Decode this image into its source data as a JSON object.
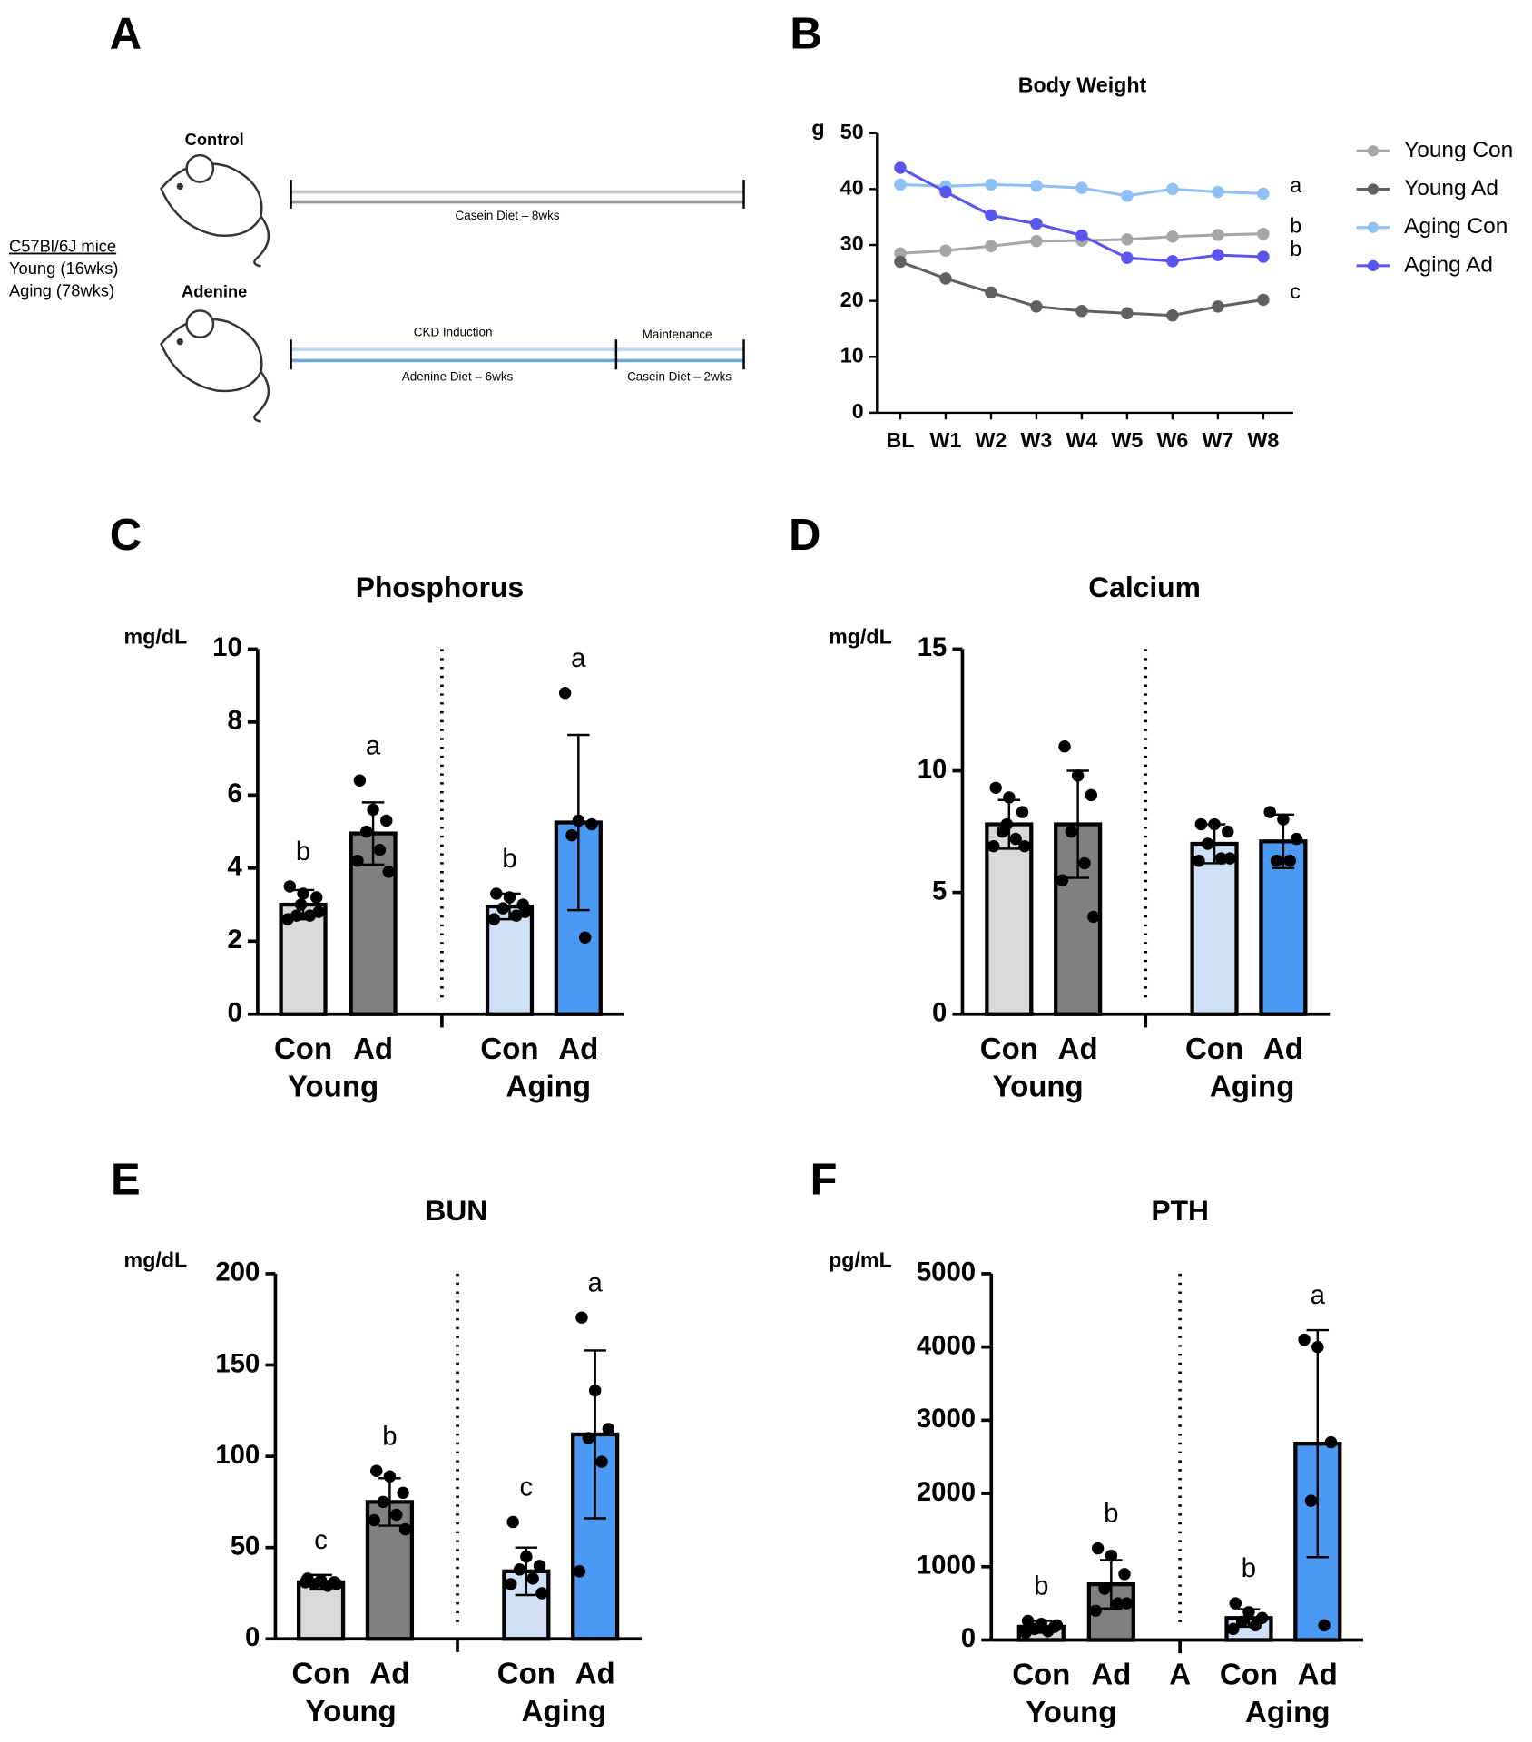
{
  "schematic": {
    "panel": "A",
    "cohort": "C57Bl/6J mice",
    "young": "Young (16wks)",
    "aging": "Aging (78wks)",
    "control": {
      "label": "Control",
      "diet": "Casein Diet – 8wks"
    },
    "adenine": {
      "label": "Adenine",
      "phase1": "CKD Induction",
      "phase2": "Maintenance",
      "diet1": "Adenine Diet – 6wks",
      "diet2": "Casein Diet – 2wks"
    }
  },
  "chart_data": [
    {
      "type": "line",
      "panel": "B",
      "title": "Body Weight",
      "y_label": "g",
      "categories": [
        "BL",
        "W1",
        "W2",
        "W3",
        "W4",
        "W5",
        "W6",
        "W7",
        "W8"
      ],
      "ylim": [
        0,
        50
      ],
      "yticks": [
        0,
        10,
        20,
        30,
        40,
        50
      ],
      "series": [
        {
          "name": "Young Con",
          "color": "#a6a6a6",
          "annotation": "b",
          "values": [
            28.5,
            29,
            29.8,
            30.7,
            30.8,
            31,
            31.5,
            31.8,
            32
          ]
        },
        {
          "name": "Young Ad",
          "color": "#606060",
          "annotation": "c",
          "values": [
            27,
            24,
            21.5,
            19,
            18.2,
            17.8,
            17.4,
            19,
            20.2
          ]
        },
        {
          "name": "Aging Con",
          "color": "#8fc0f5",
          "annotation": "a",
          "values": [
            40.8,
            40.5,
            40.8,
            40.6,
            40.2,
            38.8,
            40,
            39.5,
            39.2
          ]
        },
        {
          "name": "Aging Ad",
          "color": "#5a55ee",
          "annotation": "b",
          "values": [
            43.8,
            39.5,
            35.3,
            33.8,
            31.7,
            27.7,
            27.1,
            28.2,
            27.9
          ]
        }
      ]
    },
    {
      "type": "bar",
      "panel": "C",
      "title": "Phosphorus",
      "y_label": "mg/dL",
      "categories": [
        "Con",
        "Ad",
        "Con",
        "Ad"
      ],
      "groups": [
        "Young",
        "Aging"
      ],
      "colors": [
        "#d9d9d9",
        "#808080",
        "#cfe0f7",
        "#4a9af5"
      ],
      "ylim": [
        0,
        10
      ],
      "yticks": [
        0,
        2,
        4,
        6,
        8,
        10
      ],
      "values": [
        3.0,
        4.95,
        2.95,
        5.25
      ],
      "errors": [
        0.4,
        0.85,
        0.35,
        2.4
      ],
      "letters": [
        "b",
        "a",
        "b",
        "a"
      ],
      "points": [
        [
          3.5,
          3.3,
          3.2,
          2.7,
          2.7,
          2.6,
          2.8,
          3.0
        ],
        [
          6.4,
          5.6,
          5.3,
          5.0,
          4.5,
          4.2,
          3.9
        ],
        [
          3.3,
          3.2,
          3.0,
          2.9,
          2.7,
          2.6,
          2.8
        ],
        [
          8.8,
          5.3,
          5.2,
          4.9,
          2.1
        ]
      ]
    },
    {
      "type": "bar",
      "panel": "D",
      "title": "Calcium",
      "y_label": "mg/dL",
      "categories": [
        "Con",
        "Ad",
        "Con",
        "Ad"
      ],
      "groups": [
        "Young",
        "Aging"
      ],
      "colors": [
        "#d9d9d9",
        "#808080",
        "#cfe0f7",
        "#4a9af5"
      ],
      "ylim": [
        0,
        15
      ],
      "yticks": [
        0,
        5,
        10,
        15
      ],
      "values": [
        7.8,
        7.8,
        7.0,
        7.1
      ],
      "errors": [
        1.0,
        2.2,
        0.8,
        1.1
      ],
      "points": [
        [
          9.3,
          8.9,
          8.3,
          7.5,
          7.2,
          6.9,
          6.9,
          7.8
        ],
        [
          11,
          9.8,
          9.0,
          7.5,
          6.2,
          5.5,
          4.0
        ],
        [
          7.8,
          7.8,
          7.5,
          7.0,
          6.4,
          6.3,
          6.4
        ],
        [
          8.3,
          8.0,
          7.2,
          6.3,
          6.3
        ]
      ]
    },
    {
      "type": "bar",
      "panel": "E",
      "title": "BUN",
      "y_label": "mg/dL",
      "categories": [
        "Con",
        "Ad",
        "Con",
        "Ad"
      ],
      "groups": [
        "Young",
        "Aging"
      ],
      "colors": [
        "#d9d9d9",
        "#808080",
        "#cfe0f7",
        "#4a9af5"
      ],
      "ylim": [
        0,
        200
      ],
      "yticks": [
        0,
        50,
        100,
        150,
        200
      ],
      "values": [
        31,
        75,
        37,
        112
      ],
      "errors": [
        4,
        13,
        13,
        46
      ],
      "letters": [
        "c",
        "b",
        "c",
        "a"
      ],
      "points": [
        [
          33,
          32,
          31,
          30,
          29,
          31,
          30
        ],
        [
          92,
          89,
          80,
          75,
          68,
          65,
          60
        ],
        [
          64,
          45,
          40,
          38,
          33,
          30,
          25
        ],
        [
          176,
          136,
          115,
          110,
          97,
          37
        ]
      ]
    },
    {
      "type": "bar",
      "panel": "F",
      "title": "PTH",
      "y_label": "pg/mL",
      "divider_label": "A",
      "categories": [
        "Con",
        "Ad",
        "Con",
        "Ad"
      ],
      "groups": [
        "Young",
        "Aging"
      ],
      "colors": [
        "#d9d9d9",
        "#808080",
        "#cfe0f7",
        "#4a9af5"
      ],
      "ylim": [
        0,
        5000
      ],
      "yticks": [
        0,
        1000,
        2000,
        3000,
        4000,
        5000
      ],
      "values": [
        180,
        760,
        300,
        2680
      ],
      "errors": [
        80,
        330,
        120,
        1550
      ],
      "letters": [
        "b",
        "b",
        "b",
        "a"
      ],
      "points": [
        [
          260,
          220,
          180,
          150,
          120,
          100,
          200
        ],
        [
          1250,
          1150,
          900,
          700,
          500,
          400,
          500
        ],
        [
          500,
          380,
          300,
          250,
          200,
          150
        ],
        [
          4100,
          4000,
          2700,
          1900,
          200
        ]
      ]
    }
  ]
}
